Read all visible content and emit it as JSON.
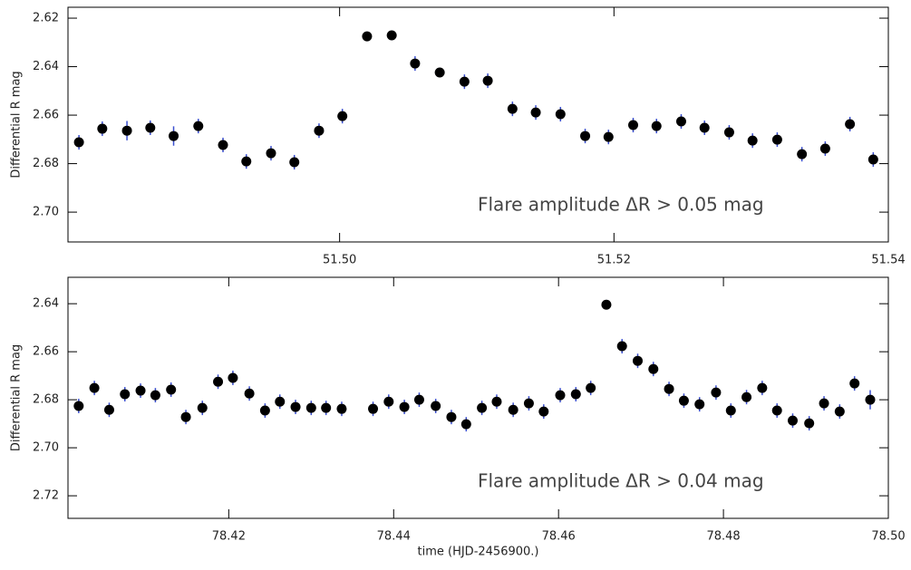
{
  "chart_data": [
    {
      "type": "scatter",
      "ylabel": "Differential R mag",
      "annotation": "Flare amplitude ΔR > 0.05 mag",
      "color": "#000000",
      "error_color": "#3a4fd0",
      "xlim": [
        51.4802,
        51.54
      ],
      "ylim": [
        2.7123,
        2.6155
      ],
      "xticks": [
        {
          "value": 51.5,
          "label": "51.50"
        },
        51.52,
        51.54
      ],
      "yticks": [
        2.62,
        2.64,
        2.66,
        2.68,
        {
          "value": 2.7,
          "label": "2.70"
        }
      ],
      "x": [
        51.481,
        51.4827,
        51.4845,
        51.4862,
        51.4879,
        51.4897,
        51.4915,
        51.4932,
        51.495,
        51.4967,
        51.4985,
        51.5002,
        51.502,
        51.5038,
        51.5055,
        51.5073,
        51.5091,
        51.5108,
        51.5126,
        51.5143,
        51.5161,
        51.5179,
        51.5196,
        51.5214,
        51.5231,
        51.5249,
        51.5266,
        51.5284,
        51.5301,
        51.5319,
        51.5337,
        51.5354,
        51.5372,
        51.5389
      ],
      "values": [
        2.6712,
        2.6656,
        2.6664,
        2.6652,
        2.6686,
        2.6645,
        2.6723,
        2.6791,
        2.6757,
        2.6794,
        2.6664,
        2.6604,
        2.6275,
        2.6271,
        2.6387,
        2.6424,
        2.6462,
        2.6458,
        2.6574,
        2.6589,
        2.6596,
        2.6686,
        2.669,
        2.6641,
        2.6645,
        2.6626,
        2.6652,
        2.6671,
        2.6705,
        2.6701,
        2.6761,
        2.6738,
        2.6637,
        2.6783
      ],
      "errors": [
        0.003,
        0.003,
        0.004,
        0.003,
        0.004,
        0.003,
        0.003,
        0.003,
        0.003,
        0.003,
        0.003,
        0.003,
        0.002,
        0.002,
        0.003,
        0.002,
        0.003,
        0.003,
        0.003,
        0.003,
        0.003,
        0.003,
        0.003,
        0.003,
        0.003,
        0.003,
        0.003,
        0.003,
        0.003,
        0.003,
        0.003,
        0.003,
        0.003,
        0.003
      ]
    },
    {
      "type": "scatter",
      "ylabel": "Differential R mag",
      "xlabel": "time (HJD-2456900.)",
      "annotation": "Flare amplitude ΔR > 0.04 mag",
      "color": "#000000",
      "error_color": "#3a4fd0",
      "xlim": [
        78.4005,
        78.5
      ],
      "ylim": [
        2.7294,
        2.629
      ],
      "xticks": [
        78.42,
        78.44,
        78.46,
        78.48,
        {
          "value": 78.5,
          "label": "78.50"
        }
      ],
      "yticks": [
        2.64,
        2.66,
        2.68,
        {
          "value": 2.7,
          "label": "2.70"
        },
        2.72
      ],
      "x": [
        78.4018,
        78.4037,
        78.4055,
        78.4074,
        78.4093,
        78.4111,
        78.413,
        78.4148,
        78.4168,
        78.4187,
        78.4205,
        78.4225,
        78.4244,
        78.4262,
        78.4281,
        78.43,
        78.4318,
        78.4337,
        78.4375,
        78.4394,
        78.4413,
        78.4431,
        78.4451,
        78.447,
        78.4488,
        78.4507,
        78.4525,
        78.4545,
        78.4564,
        78.4582,
        78.4602,
        78.4621,
        78.4639,
        78.4658,
        78.4677,
        78.4696,
        78.4715,
        78.4734,
        78.4752,
        78.4771,
        78.4791,
        78.4809,
        78.4828,
        78.4847,
        78.4865,
        78.4884,
        78.4904,
        78.4922,
        78.4941,
        78.4959,
        78.4978
      ],
      "values": [
        2.6826,
        2.6751,
        2.6842,
        2.6777,
        2.6762,
        2.6781,
        2.6758,
        2.6872,
        2.6834,
        2.6725,
        2.6709,
        2.6774,
        2.6845,
        2.6808,
        2.683,
        2.6834,
        2.6834,
        2.6838,
        2.6838,
        2.6808,
        2.683,
        2.68,
        2.6826,
        2.6872,
        2.6902,
        2.6834,
        2.6808,
        2.6842,
        2.6815,
        2.6849,
        2.6781,
        2.6777,
        2.6751,
        2.6404,
        2.6577,
        2.6638,
        2.6672,
        2.6755,
        2.6804,
        2.6819,
        2.677,
        2.6845,
        2.6789,
        2.6751,
        2.6845,
        2.6887,
        2.6898,
        2.6815,
        2.6849,
        2.6732,
        2.68
      ],
      "errors": [
        0.003,
        0.003,
        0.003,
        0.003,
        0.003,
        0.003,
        0.003,
        0.003,
        0.003,
        0.003,
        0.003,
        0.003,
        0.003,
        0.003,
        0.003,
        0.003,
        0.003,
        0.003,
        0.003,
        0.003,
        0.003,
        0.003,
        0.003,
        0.003,
        0.003,
        0.003,
        0.003,
        0.003,
        0.003,
        0.003,
        0.003,
        0.003,
        0.003,
        0.002,
        0.003,
        0.003,
        0.003,
        0.003,
        0.003,
        0.003,
        0.003,
        0.003,
        0.003,
        0.003,
        0.003,
        0.003,
        0.003,
        0.003,
        0.003,
        0.003,
        0.004
      ]
    }
  ]
}
